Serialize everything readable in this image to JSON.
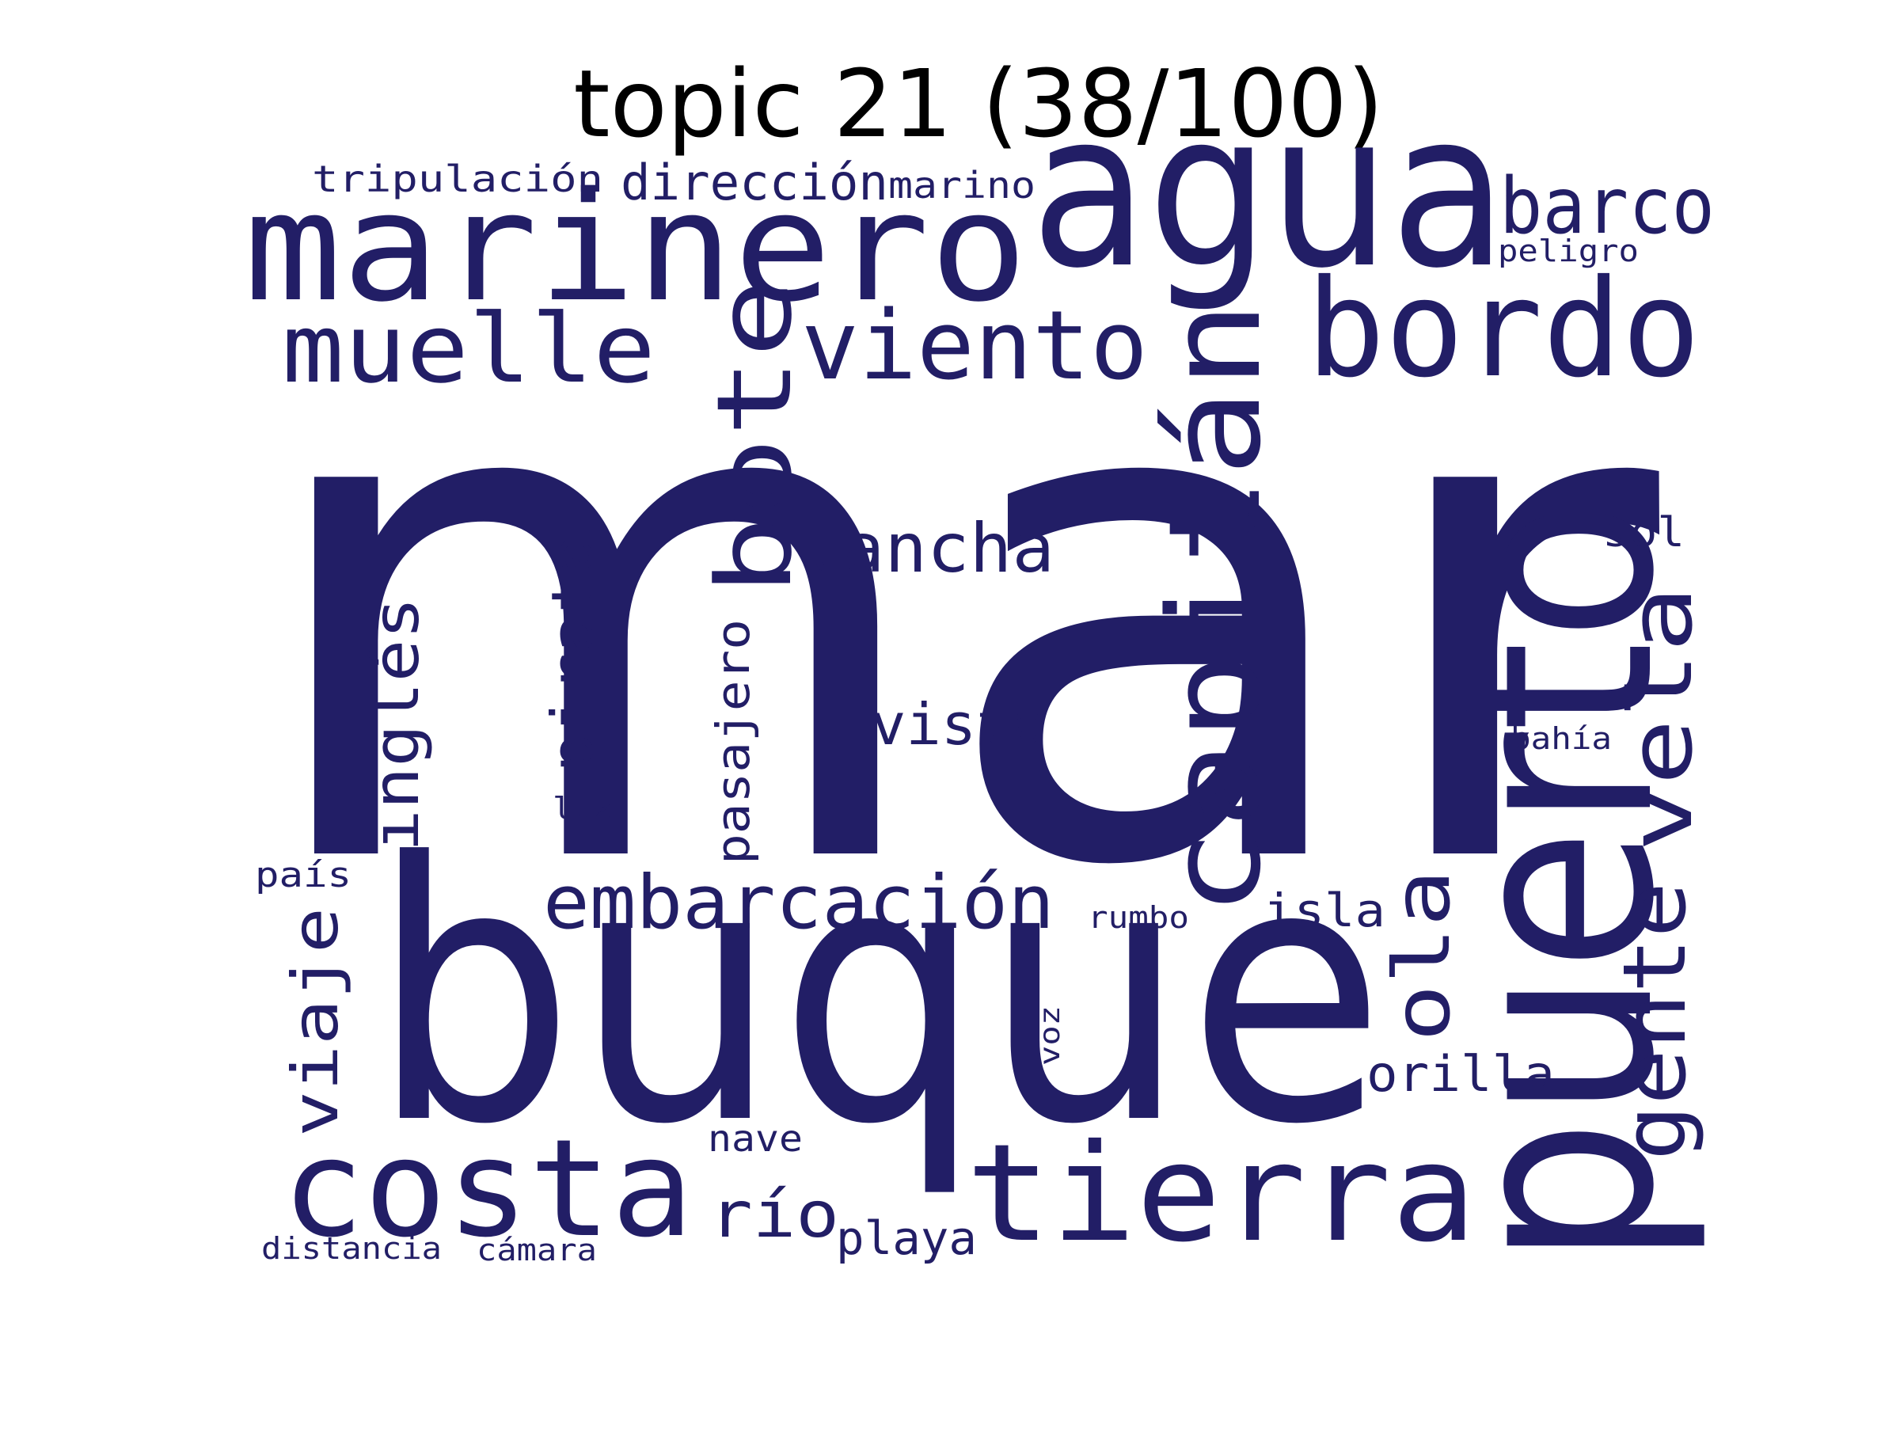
{
  "title": "topic 21 (38/100)",
  "word_color": "#221e66",
  "background_color": "#ffffff",
  "words": {
    "mar": "mar",
    "buque": "buque",
    "puerto": "puerto",
    "agua": "agua",
    "marinero": "marinero",
    "capitan": "capitán",
    "bordo": "bordo",
    "tierra": "tierra",
    "costa": "costa",
    "bote": "bote",
    "viento": "viento",
    "muelle": "muelle",
    "barco": "barco",
    "vela": "vela",
    "gente": "gente",
    "embarcacion": "embarcación",
    "lancha": "lancha",
    "ola": "ola",
    "ingles": "inglés",
    "viaje": "viaje",
    "pirata": "pirata",
    "vista": "vista",
    "direccion": "dirección",
    "pasajero": "pasajero",
    "rio": "río",
    "orilla": "orilla",
    "playa": "playa",
    "isla": "isla",
    "tripulacion": "tripulación",
    "marino": "marino",
    "sol": "sol",
    "nave": "nave",
    "peligro": "peligro",
    "pais": "país",
    "luz": "luz",
    "bahia": "bahía",
    "distancia": "distancia",
    "camara": "cámara",
    "rumbo": "rumbo",
    "voz": "voz"
  }
}
